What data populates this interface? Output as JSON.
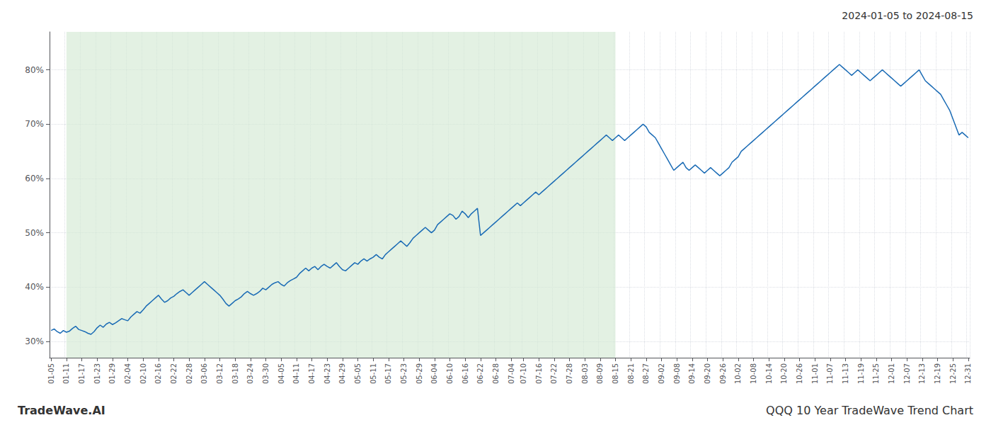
{
  "chart_data": {
    "type": "line",
    "title": "QQQ 10 Year TradeWave Trend Chart",
    "subtitle": "2024-01-05 to 2024-08-15",
    "annotations": [
      "TradeWave.AI"
    ],
    "color": "#1a6bb5",
    "grid": true,
    "shaded": {
      "start": "01-11",
      "end": "08-15",
      "color": "#d4ead4"
    },
    "ylim": [
      27,
      87
    ],
    "yticks": [
      {
        "value": 30,
        "label": "30%"
      },
      {
        "value": 40,
        "label": "40%"
      },
      {
        "value": 50,
        "label": "50%"
      },
      {
        "value": 60,
        "label": "60%"
      },
      {
        "value": 70,
        "label": "70%"
      },
      {
        "value": 80,
        "label": "80%"
      }
    ],
    "categories": [
      "01-05",
      null,
      null,
      null,
      null,
      "01-11",
      null,
      null,
      null,
      null,
      "01-17",
      null,
      null,
      null,
      null,
      "01-23",
      null,
      null,
      null,
      null,
      "01-29",
      null,
      null,
      null,
      null,
      "02-04",
      null,
      null,
      null,
      null,
      "02-10",
      null,
      null,
      null,
      null,
      "02-16",
      null,
      null,
      null,
      null,
      "02-22",
      null,
      null,
      null,
      null,
      "02-28",
      null,
      null,
      null,
      null,
      "03-06",
      null,
      null,
      null,
      null,
      "03-12",
      null,
      null,
      null,
      null,
      "03-18",
      null,
      null,
      null,
      null,
      "03-24",
      null,
      null,
      null,
      null,
      "03-30",
      null,
      null,
      null,
      null,
      "04-05",
      null,
      null,
      null,
      null,
      "04-11",
      null,
      null,
      null,
      null,
      "04-17",
      null,
      null,
      null,
      null,
      "04-23",
      null,
      null,
      null,
      null,
      "04-29",
      null,
      null,
      null,
      null,
      "05-05",
      null,
      null,
      null,
      null,
      "05-11",
      null,
      null,
      null,
      null,
      "05-17",
      null,
      null,
      null,
      null,
      "05-23",
      null,
      null,
      null,
      null,
      "05-29",
      null,
      null,
      null,
      null,
      "06-04",
      null,
      null,
      null,
      null,
      "06-10",
      null,
      null,
      null,
      null,
      "06-16",
      null,
      null,
      null,
      null,
      "06-22",
      null,
      null,
      null,
      null,
      "06-28",
      null,
      null,
      null,
      null,
      "07-04",
      null,
      null,
      null,
      "07-10",
      null,
      null,
      null,
      null,
      "07-16",
      null,
      null,
      null,
      null,
      "07-22",
      null,
      null,
      null,
      null,
      "07-28",
      null,
      null,
      null,
      null,
      "08-03",
      null,
      null,
      null,
      null,
      "08-09",
      null,
      null,
      null,
      null,
      "08-15",
      null,
      null,
      null,
      null,
      "08-21",
      null,
      null,
      null,
      null,
      "08-27",
      null,
      null,
      null,
      null,
      "09-02",
      null,
      null,
      null,
      null,
      "09-08",
      null,
      null,
      null,
      null,
      "09-14",
      null,
      null,
      null,
      null,
      "09-20",
      null,
      null,
      null,
      null,
      "09-26",
      null,
      null,
      null,
      null,
      "10-02",
      null,
      null,
      null,
      null,
      "10-08",
      null,
      null,
      null,
      null,
      "10-14",
      null,
      null,
      null,
      null,
      "10-20",
      null,
      null,
      null,
      null,
      "10-26",
      null,
      null,
      null,
      null,
      "11-01",
      null,
      null,
      null,
      null,
      "11-07",
      null,
      null,
      null,
      null,
      "11-13",
      null,
      null,
      null,
      null,
      "11-19",
      null,
      null,
      null,
      null,
      "11-25",
      null,
      null,
      null,
      null,
      "12-01",
      null,
      null,
      null,
      null,
      "12-07",
      null,
      null,
      null,
      null,
      "12-13",
      null,
      null,
      null,
      null,
      "12-19",
      null,
      null,
      null,
      null,
      "12-25",
      null,
      null,
      null,
      null,
      "12-31"
    ],
    "values": [
      32.0,
      32.3,
      31.8,
      31.5,
      32.0,
      31.7,
      31.9,
      32.4,
      32.8,
      32.2,
      32.0,
      31.8,
      31.5,
      31.3,
      31.8,
      32.5,
      33.0,
      32.6,
      33.2,
      33.5,
      33.1,
      33.4,
      33.8,
      34.2,
      34.0,
      33.8,
      34.5,
      35.0,
      35.5,
      35.2,
      35.8,
      36.5,
      37.0,
      37.5,
      38.0,
      38.5,
      37.8,
      37.2,
      37.5,
      38.0,
      38.3,
      38.8,
      39.2,
      39.5,
      39.0,
      38.5,
      39.0,
      39.5,
      40.0,
      40.5,
      41.0,
      40.5,
      40.0,
      39.5,
      39.0,
      38.5,
      37.8,
      37.0,
      36.5,
      37.0,
      37.5,
      37.8,
      38.2,
      38.8,
      39.2,
      38.8,
      38.5,
      38.8,
      39.2,
      39.8,
      39.5,
      40.0,
      40.5,
      40.8,
      41.0,
      40.5,
      40.2,
      40.8,
      41.2,
      41.5,
      41.8,
      42.5,
      43.0,
      43.5,
      43.0,
      43.5,
      43.8,
      43.2,
      43.8,
      44.2,
      43.8,
      43.5,
      44.0,
      44.5,
      43.8,
      43.2,
      43.0,
      43.5,
      44.0,
      44.5,
      44.2,
      44.8,
      45.2,
      44.8,
      45.2,
      45.5,
      46.0,
      45.5,
      45.2,
      46.0,
      46.5,
      47.0,
      47.5,
      48.0,
      48.5,
      48.0,
      47.5,
      48.2,
      49.0,
      49.5,
      50.0,
      50.5,
      51.0,
      50.5,
      50.0,
      50.5,
      51.5,
      52.0,
      52.5,
      53.0,
      53.5,
      53.2,
      52.5,
      53.0,
      54.0,
      53.5,
      52.8,
      53.5,
      54.0,
      54.5,
      49.5,
      50.0,
      50.5,
      51.0,
      51.5,
      52.0,
      52.5,
      53.0,
      53.5,
      54.0,
      54.5,
      55.0,
      55.5,
      55.0,
      55.5,
      56.0,
      56.5,
      57.0,
      57.5,
      57.0,
      57.5,
      58.0,
      58.5,
      59.0,
      59.5,
      60.0,
      60.5,
      61.0,
      61.5,
      62.0,
      62.5,
      63.0,
      63.5,
      64.0,
      64.5,
      65.0,
      65.5,
      66.0,
      66.5,
      67.0,
      67.5,
      68.0,
      67.5,
      67.0,
      67.5,
      68.0,
      67.5,
      67.0,
      67.5,
      68.0,
      68.5,
      69.0,
      69.5,
      70.0,
      69.5,
      68.5,
      68.0,
      67.5,
      66.5,
      65.5,
      64.5,
      63.5,
      62.5,
      61.5,
      62.0,
      62.5,
      63.0,
      62.0,
      61.5,
      62.0,
      62.5,
      62.0,
      61.5,
      61.0,
      61.5,
      62.0,
      61.5,
      61.0,
      60.5,
      61.0,
      61.5,
      62.0,
      63.0,
      63.5,
      64.0,
      65.0,
      65.5,
      66.0,
      66.5,
      67.0,
      67.5,
      68.0,
      68.5,
      69.0,
      69.5,
      70.0,
      70.5,
      71.0,
      71.5,
      72.0,
      72.5,
      73.0,
      73.5,
      74.0,
      74.5,
      75.0,
      75.5,
      76.0,
      76.5,
      77.0,
      77.5,
      78.0,
      78.5,
      79.0,
      79.5,
      80.0,
      80.5,
      81.0,
      80.5,
      80.0,
      79.5,
      79.0,
      79.5,
      80.0,
      79.5,
      79.0,
      78.5,
      78.0,
      78.5,
      79.0,
      79.5,
      80.0,
      79.5,
      79.0,
      78.5,
      78.0,
      77.5,
      77.0,
      77.5,
      78.0,
      78.5,
      79.0,
      79.5,
      80.0,
      79.0,
      78.0,
      77.5,
      77.0,
      76.5,
      76.0,
      75.5,
      74.5,
      73.5,
      72.5,
      71.0,
      69.5,
      68.0,
      68.5,
      68.0,
      67.5
    ]
  }
}
